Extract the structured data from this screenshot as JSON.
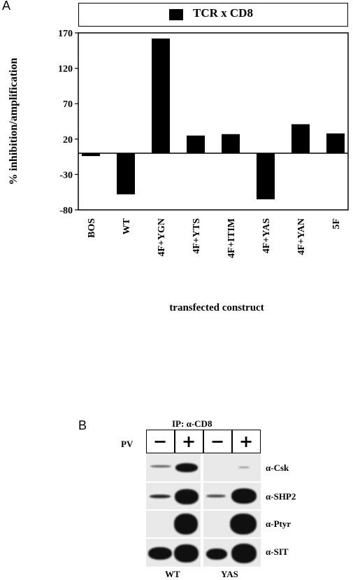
{
  "panelA": {
    "letter": "A"
  },
  "panelB": {
    "letter": "B",
    "ip_label": "IP: α-CD8",
    "pv_label": "PV",
    "lane_signs": [
      "−",
      "+",
      "−",
      "+"
    ],
    "row_labels": [
      "α-Csk",
      "α-SHP2",
      "α-Ptyr",
      "α-SIT"
    ],
    "group_labels": [
      "WT",
      "YAS"
    ]
  },
  "chart_data": {
    "type": "bar",
    "legend": [
      "TCR x CD8"
    ],
    "categories": [
      "BOS",
      "WT",
      "4F+YGN",
      "4F+YTS",
      "4F+ITIM",
      "4F+YAS",
      "4F+YAN",
      "5F"
    ],
    "series": [
      {
        "name": "TCR x CD8",
        "values": [
          -4,
          -58,
          162,
          25,
          27,
          -65,
          41,
          28
        ],
        "color": "#000000"
      }
    ],
    "ylabel": "% inhibition/amplification",
    "xlabel": "transfected construct",
    "yticks": [
      170,
      120,
      70,
      20,
      -30,
      -80
    ],
    "ylim": [
      -80,
      170
    ],
    "grid": false
  }
}
